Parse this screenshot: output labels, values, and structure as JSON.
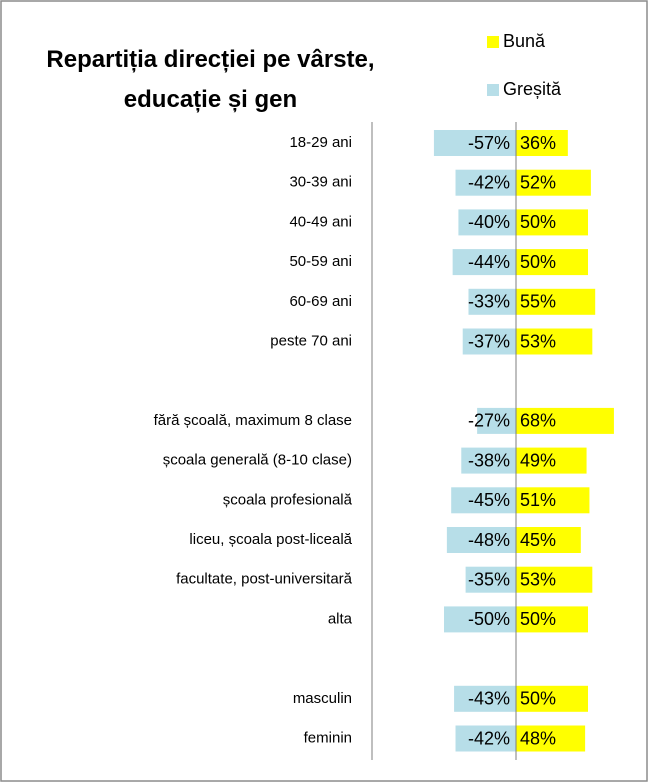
{
  "chart_data": {
    "type": "diverging-bar",
    "title": "Repartiția direcției pe vârste, educație și gen",
    "categories": [
      "18-29 ani",
      "30-39 ani",
      "40-49 ani",
      "50-59 ani",
      "60-69 ani",
      "peste 70 ani",
      null,
      "fără școală, maximum 8 clase",
      "școala generală (8-10 clase)",
      "școala profesională",
      "liceu, școala post-liceală",
      "facultate, post-universitară",
      "alta",
      null,
      "masculin",
      "feminin"
    ],
    "series": [
      {
        "name": "Bună",
        "color": "#ffff00",
        "values": [
          36,
          52,
          50,
          50,
          55,
          53,
          null,
          68,
          49,
          51,
          45,
          53,
          50,
          null,
          50,
          48
        ],
        "value_labels": [
          "36%",
          "52%",
          "50%",
          "50%",
          "55%",
          "53%",
          null,
          "68%",
          "49%",
          "51%",
          "45%",
          "53%",
          "50%",
          null,
          "50%",
          "48%"
        ]
      },
      {
        "name": "Greșită",
        "color": "#b7dee8",
        "values": [
          -57,
          -42,
          -40,
          -44,
          -33,
          -37,
          null,
          -27,
          -38,
          -45,
          -48,
          -35,
          -50,
          null,
          -43,
          -42
        ],
        "value_labels": [
          "-57%",
          "-42%",
          "-40%",
          "-44%",
          "-33%",
          "-37%",
          null,
          "-27%",
          "-38%",
          "-45%",
          "-48%",
          "-35%",
          "-50%",
          null,
          "-43%",
          "-42%"
        ]
      }
    ]
  }
}
